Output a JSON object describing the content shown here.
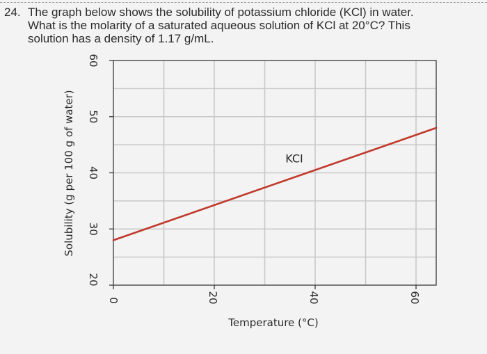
{
  "question": {
    "number": "24.",
    "line1": "The graph below shows the solubility of potassium chloride (KCl) in water.",
    "line2": "What is the molarity of a saturated aqueous solution of KCl at 20°C? This",
    "line3": "solution has a density of 1.17 g/mL."
  },
  "chart_data": {
    "type": "line",
    "xlabel": "Temperature (°C)",
    "ylabel": "Solubility (g per 100 g of water)",
    "xlim": [
      0,
      64
    ],
    "ylim": [
      20,
      60
    ],
    "x_ticks": [
      0,
      20,
      40,
      60
    ],
    "y_ticks": [
      20,
      30,
      40,
      50,
      60
    ],
    "grid": true,
    "series": [
      {
        "name": "KCl",
        "color": "#c0392b",
        "x": [
          0,
          64
        ],
        "y": [
          28,
          48
        ]
      }
    ],
    "series_label_text": "KCI"
  }
}
